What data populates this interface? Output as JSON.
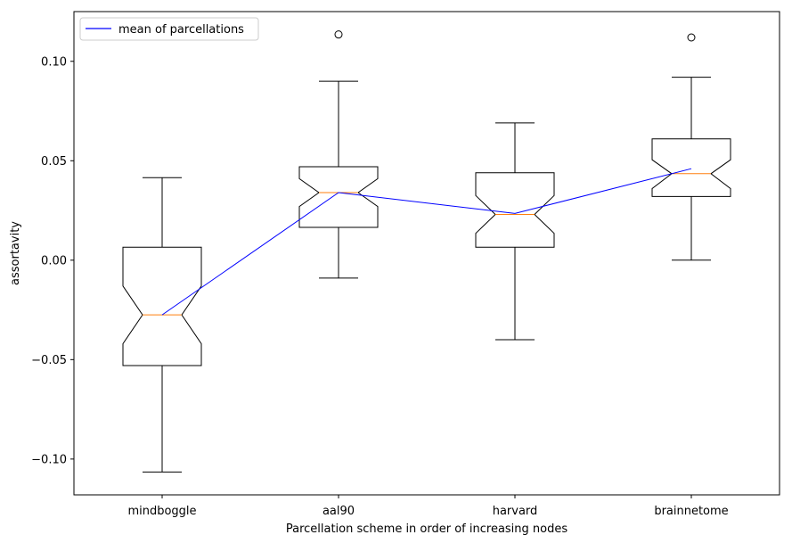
{
  "chart_data": {
    "type": "box",
    "title": "",
    "xlabel": "Parcellation scheme in order of increasing nodes",
    "ylabel": "assortavity",
    "ylim": [
      -0.118,
      0.125
    ],
    "yticks": [
      -0.1,
      -0.05,
      0.0,
      0.05,
      0.1
    ],
    "ytick_labels": [
      "−0.10",
      "−0.05",
      "0.00",
      "0.05",
      "0.10"
    ],
    "categories": [
      "mindboggle",
      "aal90",
      "harvard",
      "brainnetome"
    ],
    "notched": true,
    "boxes": [
      {
        "whisker_low": -0.1065,
        "q1": -0.053,
        "median": -0.0275,
        "q3": 0.0065,
        "whisker_high": 0.0415,
        "notch_low": -0.042,
        "notch_high": -0.013,
        "outliers": []
      },
      {
        "whisker_low": -0.009,
        "q1": 0.0165,
        "median": 0.034,
        "q3": 0.047,
        "whisker_high": 0.09,
        "notch_low": 0.027,
        "notch_high": 0.041,
        "outliers": [
          0.1135
        ]
      },
      {
        "whisker_low": -0.04,
        "q1": 0.0065,
        "median": 0.023,
        "q3": 0.044,
        "whisker_high": 0.069,
        "notch_low": 0.0135,
        "notch_high": 0.0325,
        "outliers": []
      },
      {
        "whisker_low": 0.0,
        "q1": 0.032,
        "median": 0.0435,
        "q3": 0.061,
        "whisker_high": 0.092,
        "notch_low": 0.036,
        "notch_high": 0.0505,
        "outliers": [
          0.112
        ]
      }
    ],
    "series": [
      {
        "name": "mean of parcellations",
        "values": [
          -0.0275,
          0.034,
          0.0235,
          0.046
        ],
        "color": "#0000ff"
      }
    ],
    "legend_position": "top-left",
    "colors": {
      "box": "#000000",
      "median": "#ff7f0e",
      "mean_line": "#0000ff"
    }
  }
}
